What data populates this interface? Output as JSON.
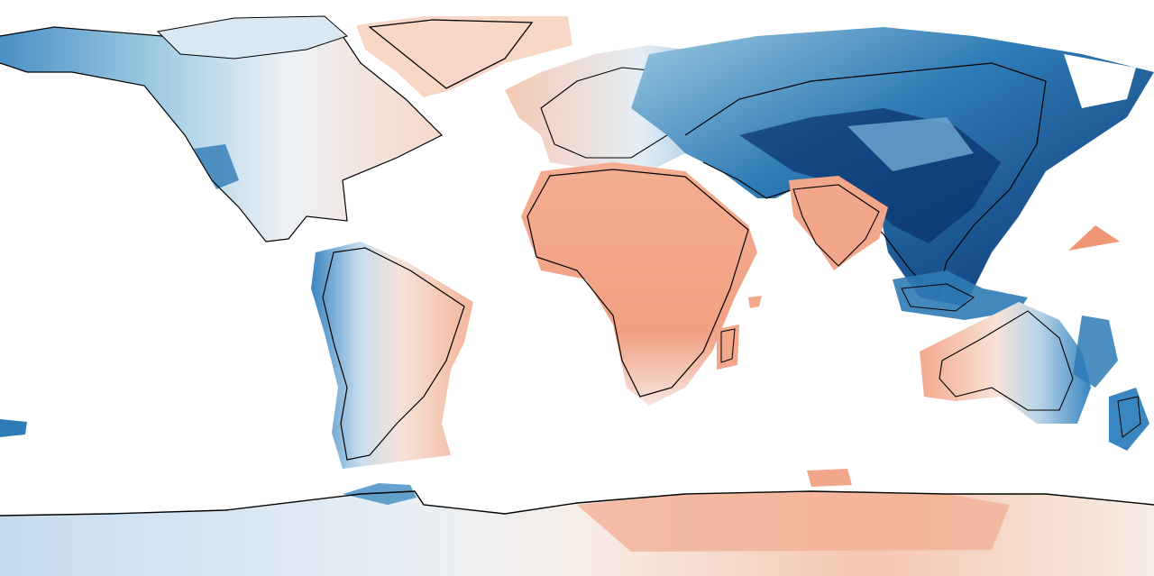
{
  "map": {
    "projection": "equirectangular",
    "ocean_color": "#ffffff",
    "coastline_color": "#000000",
    "colorscale": {
      "name": "diverging-red-blue",
      "strong_negative": "#08306b",
      "negative": "#2f7bb6",
      "weak_negative": "#9ecae1",
      "very_weak_negative": "#deebf7",
      "neutral": "#f7f4f2",
      "weak_positive": "#fbd3c0",
      "positive": "#f2a68a",
      "strong_positive": "#ee9676"
    },
    "regions": [
      {
        "name": "north-america",
        "sign": "mixed"
      },
      {
        "name": "greenland",
        "sign": "positive"
      },
      {
        "name": "south-america",
        "sign": "mixed"
      },
      {
        "name": "europe",
        "sign": "mixed"
      },
      {
        "name": "africa",
        "sign": "positive"
      },
      {
        "name": "asia",
        "sign": "negative"
      },
      {
        "name": "india",
        "sign": "positive"
      },
      {
        "name": "australia",
        "sign": "mixed"
      },
      {
        "name": "antarctica",
        "sign": "mixed"
      }
    ]
  }
}
